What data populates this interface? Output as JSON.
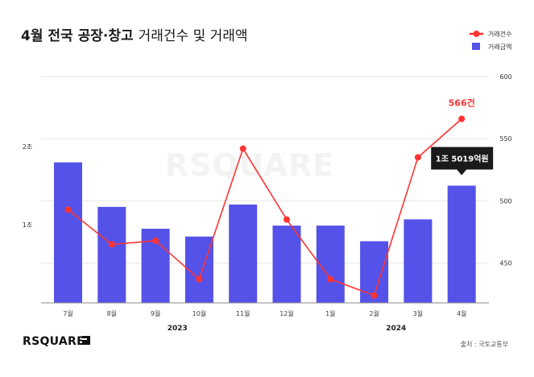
{
  "title_bold": "4월 전국 공장·창고",
  "title_regular": "거래건수 및 거래액",
  "source": "출처 : 국토교통부",
  "logo_text": "RSQUARE",
  "watermark_text": "RSQUARE",
  "colors": {
    "bar": "#5452E8",
    "line": "#FF3333",
    "tooltip_bg": "#1A1A1A"
  },
  "chart_data": {
    "type": "bar+line",
    "categories": [
      "7월",
      "8월",
      "9월",
      "10월",
      "11월",
      "12월",
      "1월",
      "2월",
      "3월",
      "4월"
    ],
    "year_labels": [
      {
        "label": "2023",
        "from": 0,
        "to": 5
      },
      {
        "label": "2024",
        "from": 6,
        "to": 9
      }
    ],
    "series": [
      {
        "name": "거래금액",
        "type": "bar",
        "axis": "left",
        "unit": "조원",
        "values": [
          1.8,
          1.23,
          0.95,
          0.85,
          1.26,
          0.99,
          0.99,
          0.79,
          1.07,
          1.5019
        ]
      },
      {
        "name": "거래건수",
        "type": "line",
        "axis": "right",
        "unit": "건",
        "values": [
          493,
          465,
          468,
          437,
          542,
          485,
          437,
          424,
          535,
          566
        ]
      }
    ],
    "left_axis": {
      "ticks": [
        {
          "value": 1,
          "label": "1조"
        },
        {
          "value": 2,
          "label": "2조"
        }
      ],
      "ylim": [
        0,
        2.9
      ]
    },
    "right_axis": {
      "ticks": [
        450,
        500,
        550,
        600
      ],
      "ylim": [
        418,
        600
      ]
    },
    "annotations": {
      "line_last_label": "566건",
      "bar_last_tooltip": "1조 5019억원"
    },
    "legend": {
      "position": "top-right",
      "items": [
        "거래건수",
        "거래금액"
      ]
    },
    "grid": true
  }
}
